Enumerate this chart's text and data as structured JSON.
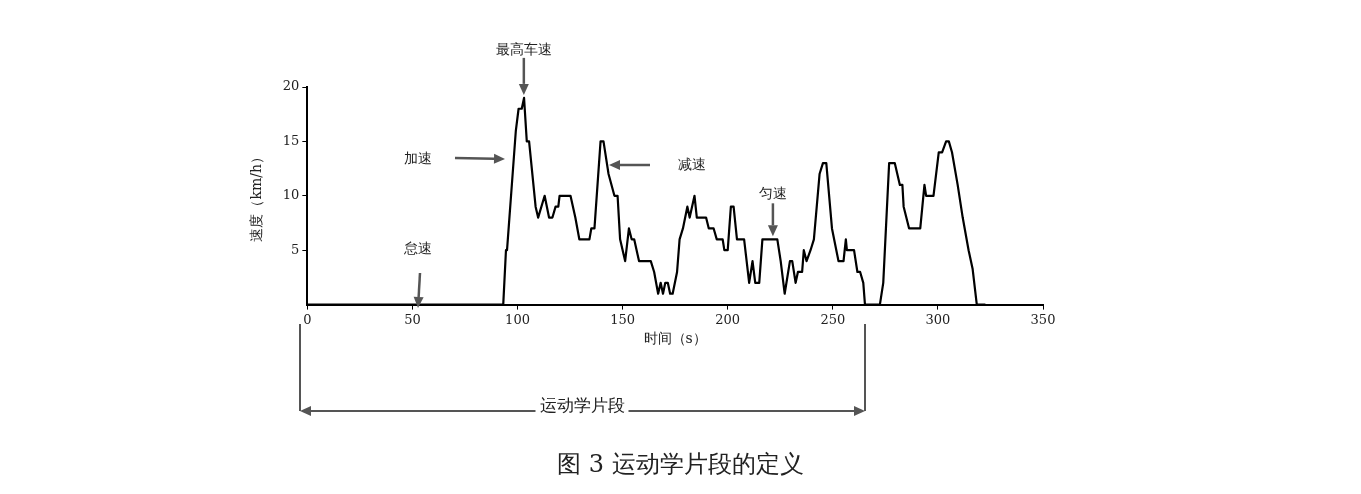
{
  "chart_data": {
    "type": "line",
    "xlabel": "时间（s）",
    "ylabel": "速度（km/h）",
    "xlim": [
      0,
      350
    ],
    "xticks": [
      0,
      50,
      100,
      150,
      200,
      250,
      300,
      350
    ],
    "ylim": [
      0,
      20
    ],
    "yticks": [
      5,
      10,
      15,
      20
    ],
    "series": [
      {
        "color": "#000000",
        "x": [
          0,
          93.2,
          94.5,
          95,
          99.2,
          100.5,
          102,
          103.1,
          104.4,
          105.5,
          108.6,
          109.8,
          112.9,
          115,
          116.6,
          118.1,
          119.4,
          120,
          125.2,
          127.5,
          129.4,
          134.2,
          135.1,
          136.6,
          139.5,
          140.9,
          143.3,
          146.1,
          147.6,
          148.8,
          151.2,
          153,
          154.3,
          155.5,
          157.8,
          163.4,
          165,
          166.9,
          168.1,
          169.2,
          170.3,
          171.5,
          172.6,
          173.8,
          175.9,
          177.1,
          178.7,
          180.8,
          181.9,
          184.2,
          185.3,
          189.7,
          191,
          193.3,
          194.8,
          197.6,
          198.4,
          200,
          201.5,
          202.8,
          204.4,
          207.8,
          210.2,
          211.8,
          213.1,
          215,
          216.5,
          223.6,
          225.2,
          227.1,
          229.6,
          230.7,
          232.3,
          233.4,
          235.4,
          236.2,
          237.5,
          239.4,
          241,
          243.7,
          245.3,
          246.9,
          249.6,
          252.7,
          255.1,
          256.2,
          256.7,
          260.1,
          261.7,
          263,
          264.5,
          265.3,
          272.4,
          274,
          276.8,
          279.5,
          281.9,
          283.1,
          283.7,
          286.3,
          291.6,
          293.6,
          294.4,
          297.9,
          300.4,
          302,
          303.9,
          305.2,
          306.7,
          309.4,
          311.8,
          314.6,
          316.5,
          318.5,
          322.6
        ],
        "values": [
          0,
          0,
          5,
          5,
          16,
          18,
          18,
          19,
          15,
          15,
          9,
          8,
          10,
          8,
          8,
          9,
          9,
          10,
          10,
          8,
          6,
          6,
          7,
          7,
          15,
          15,
          12,
          10,
          10,
          6,
          4,
          7,
          6,
          6,
          4,
          4,
          3,
          1,
          2,
          1,
          2,
          2,
          1,
          1,
          3,
          6,
          7,
          9,
          8,
          10,
          8,
          8,
          7,
          7,
          6,
          6,
          5,
          5,
          9,
          9,
          6,
          6,
          2,
          4,
          2,
          2,
          6,
          6,
          4,
          1,
          4,
          4,
          2,
          3,
          3,
          5,
          4,
          5,
          6,
          12,
          13,
          13,
          7,
          4,
          4,
          6,
          5,
          5,
          3,
          3,
          2,
          0,
          0,
          2,
          13,
          13,
          11,
          11,
          9,
          7,
          7,
          11,
          10,
          10,
          14,
          14,
          15,
          15,
          14,
          11,
          8,
          5,
          3.3,
          0,
          0
        ]
      }
    ],
    "annotations": [
      {
        "text": "最高车速",
        "x": 103,
        "y": 19
      },
      "加速",
      "减速",
      {
        "text": "匀速",
        "x": 221.5,
        "y": 6
      },
      "怠速",
      "运动学片段",
      "图 3 运动学片段的定义"
    ]
  }
}
